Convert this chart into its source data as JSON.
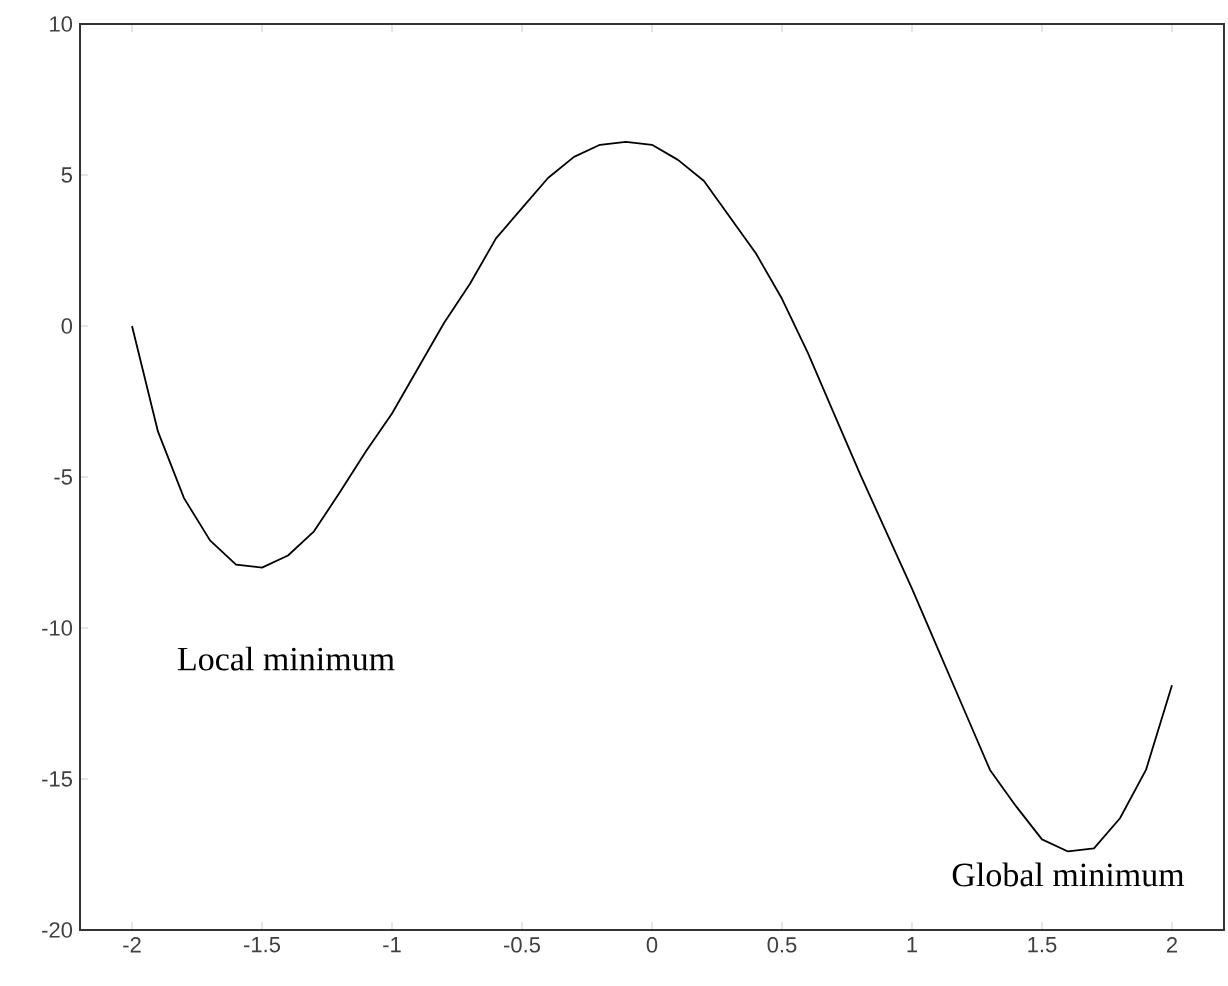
{
  "chart_data": {
    "type": "line",
    "color": "#000000",
    "x": [
      -2,
      -1.9,
      -1.8,
      -1.7,
      -1.6,
      -1.5,
      -1.4,
      -1.3,
      -1.2,
      -1.1,
      -1,
      -0.9,
      -0.8,
      -0.7,
      -0.6,
      -0.5,
      -0.4,
      -0.3,
      -0.2,
      -0.1,
      0,
      0.1,
      0.2,
      0.3,
      0.4,
      0.5,
      0.6,
      0.7,
      0.8,
      0.9,
      1,
      1.1,
      1.2,
      1.3,
      1.4,
      1.5,
      1.6,
      1.7,
      1.8,
      1.9,
      2
    ],
    "values": [
      0,
      -3.5,
      -5.7,
      -7.1,
      -7.9,
      -8.0,
      -7.6,
      -6.8,
      -5.5,
      -4.15,
      -2.9,
      -1.4,
      0.1,
      1.4,
      2.9,
      3.9,
      4.9,
      5.6,
      6.0,
      6.1,
      6.0,
      5.5,
      4.8,
      3.6,
      2.4,
      0.9,
      -0.9,
      -2.9,
      -4.9,
      -6.8,
      -8.7,
      -10.7,
      -12.7,
      -14.7,
      -15.9,
      -17.0,
      -17.4,
      -17.3,
      -16.3,
      -14.7,
      -11.9
    ],
    "xlim": [
      -2.2,
      2.2
    ],
    "ylim": [
      -20,
      10
    ],
    "xticks": [
      -2,
      -1.5,
      -1,
      -0.5,
      0,
      0.5,
      1,
      1.5,
      2
    ],
    "yticks": [
      -20,
      -15,
      -10,
      -5,
      0,
      5,
      10
    ],
    "annotations": [
      {
        "text": "Local minimum",
        "x": -1.5,
        "y": -8.0
      },
      {
        "text": "Global minimum",
        "x": 1.6,
        "y": -17.4
      }
    ],
    "marker": "none",
    "line_style": "solid"
  }
}
